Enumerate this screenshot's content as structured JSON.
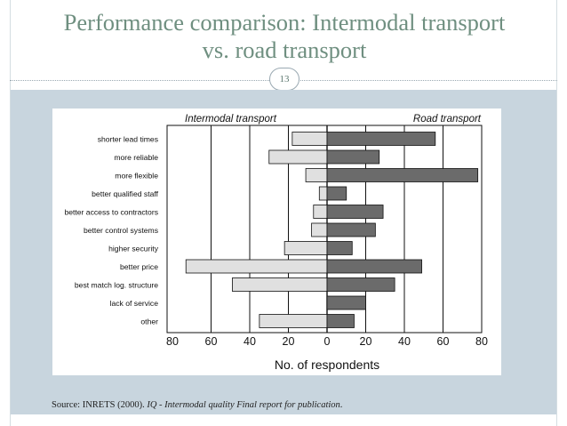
{
  "slide": {
    "title_line1": "Performance comparison: Intermodal transport",
    "title_line2": "vs. road transport",
    "number": "13",
    "source_plain": "Source: INRETS (2000). ",
    "source_italic": "IQ - Intermodal quality Final report for publication",
    "source_end": "."
  },
  "colors": {
    "title": "#6f8f80",
    "panel": "#c8d5de",
    "intermodal_bar": "#e0e0e0",
    "road_bar": "#6b6b6b"
  },
  "chart_data": {
    "type": "bar",
    "orientation": "horizontal-diverging",
    "categories": [
      "shorter lead times",
      "more reliable",
      "more flexible",
      "better qualified staff",
      "better access to contractors",
      "better control systems",
      "higher security",
      "better price",
      "best match log. structure",
      "lack of service",
      "other"
    ],
    "series": [
      {
        "name": "Intermodal transport",
        "values": [
          18,
          30,
          11,
          4,
          7,
          8,
          22,
          73,
          49,
          0,
          35
        ]
      },
      {
        "name": "Road transport",
        "values": [
          56,
          27,
          78,
          10,
          29,
          25,
          13,
          49,
          35,
          20,
          14
        ]
      }
    ],
    "x_ticks": [
      "80",
      "60",
      "40",
      "20",
      "0",
      "20",
      "40",
      "60",
      "80"
    ],
    "xlim": [
      -80,
      80
    ],
    "xlabel": "No. of respondents",
    "grid": true
  }
}
